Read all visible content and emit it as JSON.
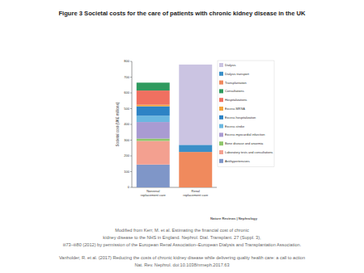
{
  "chart_data": {
    "type": "bar",
    "title": "Figure 3 Societal costs for the care of patients with chronic kidney disease in the UK",
    "y_label": "Societal cost (UK£ millions)",
    "categories": [
      "Nonrenal replacement care",
      "Renal replacement care"
    ],
    "stacked": true,
    "grid": false,
    "legend": "right",
    "ylim": [
      0,
      800
    ],
    "yticks": [
      0,
      100,
      200,
      300,
      400,
      500,
      600,
      700,
      800
    ],
    "series": [
      {
        "name": "Antihypertensives",
        "color": "#7f96c8",
        "values": [
          145,
          0
        ]
      },
      {
        "name": "Laboratory tests and consultations",
        "color": "#f3a090",
        "values": [
          150,
          0
        ]
      },
      {
        "name": "Bone disease and anaemia",
        "color": "#8fc56a",
        "values": [
          15,
          0
        ]
      },
      {
        "name": "Excess myocardial infarction",
        "color": "#a99bd2",
        "values": [
          105,
          0
        ]
      },
      {
        "name": "Excess stroke",
        "color": "#6bb7e0",
        "values": [
          40,
          0
        ]
      },
      {
        "name": "Excess hospitalization",
        "color": "#2d83c5",
        "values": [
          60,
          0
        ]
      },
      {
        "name": "Excess MRSA",
        "color": "#f3a43b",
        "values": [
          10,
          0
        ]
      },
      {
        "name": "Hospitalizations",
        "color": "#f07060",
        "values": [
          90,
          0
        ]
      },
      {
        "name": "Consultations",
        "color": "#2e9a5e",
        "values": [
          50,
          0
        ]
      },
      {
        "name": "Transplantation",
        "color": "#f08a5d",
        "values": [
          0,
          225
        ]
      },
      {
        "name": "Dialysis transport",
        "color": "#3a8fc8",
        "values": [
          0,
          45
        ]
      },
      {
        "name": "Dialysis",
        "color": "#cbc4e2",
        "values": [
          0,
          510
        ]
      }
    ],
    "annotations": [
      "Nature Reviews | Nephrology",
      "Modified from Kerr, M. et al. Estimating the financial cost of chronic",
      "kidney disease to the NHS in England. Nephrol. Dial. Transplant. 27 (Suppl. 3),",
      "iii73–iii80 (2012) by permission of the European Renal Association–European Dialysis and Transplantation Association.",
      "Vanholder, R. et al. (2017) Reducing the costs of chronic kidney disease while delivering quality health care: a call to action",
      "Nat. Rev. Nephrol. doi:10.1038/nrneph.2017.63"
    ]
  }
}
